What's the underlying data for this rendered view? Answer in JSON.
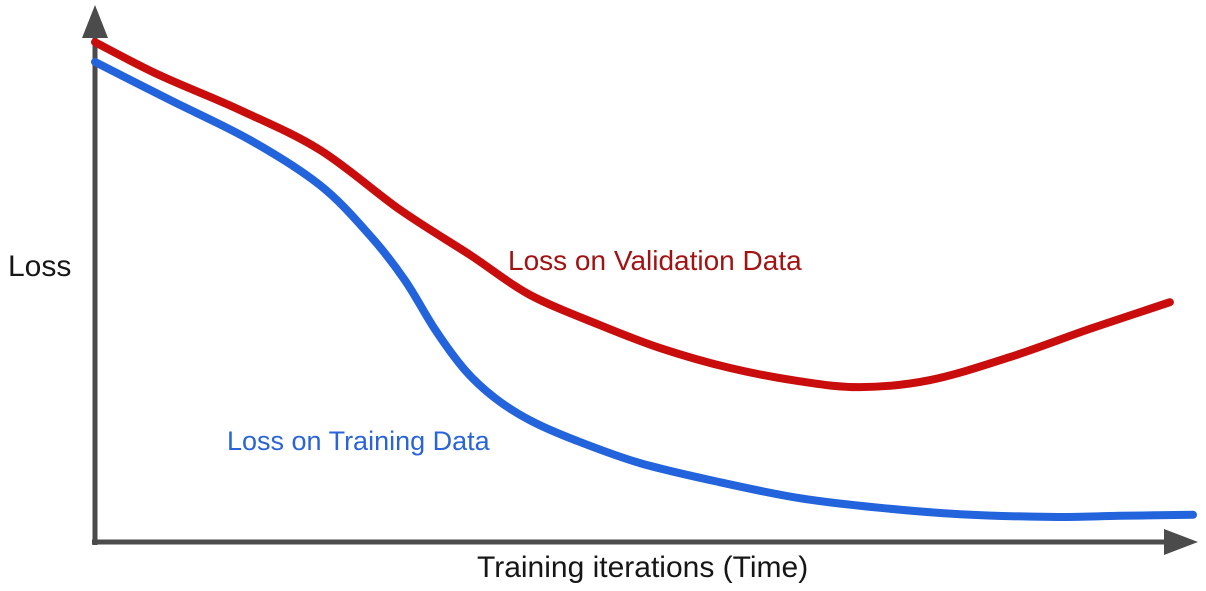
{
  "page": {
    "background": "#ffffff"
  },
  "chart_data": {
    "type": "line",
    "title": "",
    "xlabel": "Training iterations (Time)",
    "ylabel": "Loss",
    "axis_color": "#4b4b4b",
    "text_color": "#161616",
    "grid": false,
    "legend_position": "inline-annotations",
    "axes_note": "Both axes are unlabeled arrows: x arrow points right (time), y arrow points up (loss). No tick marks or numeric scale shown.",
    "units": {
      "x": "fraction of x-axis length (0 = origin, 1 = arrow tip)",
      "y": "fraction of y-axis height (0 = baseline, 1 = arrow tip)"
    },
    "series": [
      {
        "name": "Loss on Validation Data",
        "color": "#c90d0d",
        "label_color": "#a21212",
        "shape": "decreases, reaches minimum ~70% along x, then rises (overfitting)",
        "points": [
          [
            0.0,
            0.936
          ],
          [
            0.059,
            0.874
          ],
          [
            0.132,
            0.809
          ],
          [
            0.205,
            0.734
          ],
          [
            0.278,
            0.622
          ],
          [
            0.342,
            0.537
          ],
          [
            0.396,
            0.463
          ],
          [
            0.46,
            0.406
          ],
          [
            0.515,
            0.363
          ],
          [
            0.578,
            0.326
          ],
          [
            0.642,
            0.301
          ],
          [
            0.697,
            0.29
          ],
          [
            0.76,
            0.303
          ],
          [
            0.833,
            0.346
          ],
          [
            0.906,
            0.399
          ],
          [
            0.979,
            0.449
          ]
        ]
      },
      {
        "name": "Loss on Training Data",
        "color": "#2363dc",
        "label_color": "#2a64d9",
        "shape": "decreases monotonically with steep mid drop, flattens near zero",
        "points": [
          [
            0.0,
            0.899
          ],
          [
            0.068,
            0.828
          ],
          [
            0.141,
            0.753
          ],
          [
            0.205,
            0.668
          ],
          [
            0.25,
            0.575
          ],
          [
            0.282,
            0.491
          ],
          [
            0.31,
            0.397
          ],
          [
            0.337,
            0.322
          ],
          [
            0.364,
            0.27
          ],
          [
            0.396,
            0.228
          ],
          [
            0.437,
            0.191
          ],
          [
            0.496,
            0.148
          ],
          [
            0.569,
            0.112
          ],
          [
            0.642,
            0.082
          ],
          [
            0.715,
            0.064
          ],
          [
            0.788,
            0.052
          ],
          [
            0.87,
            0.047
          ],
          [
            0.933,
            0.049
          ],
          [
            1.0,
            0.051
          ]
        ]
      }
    ]
  }
}
